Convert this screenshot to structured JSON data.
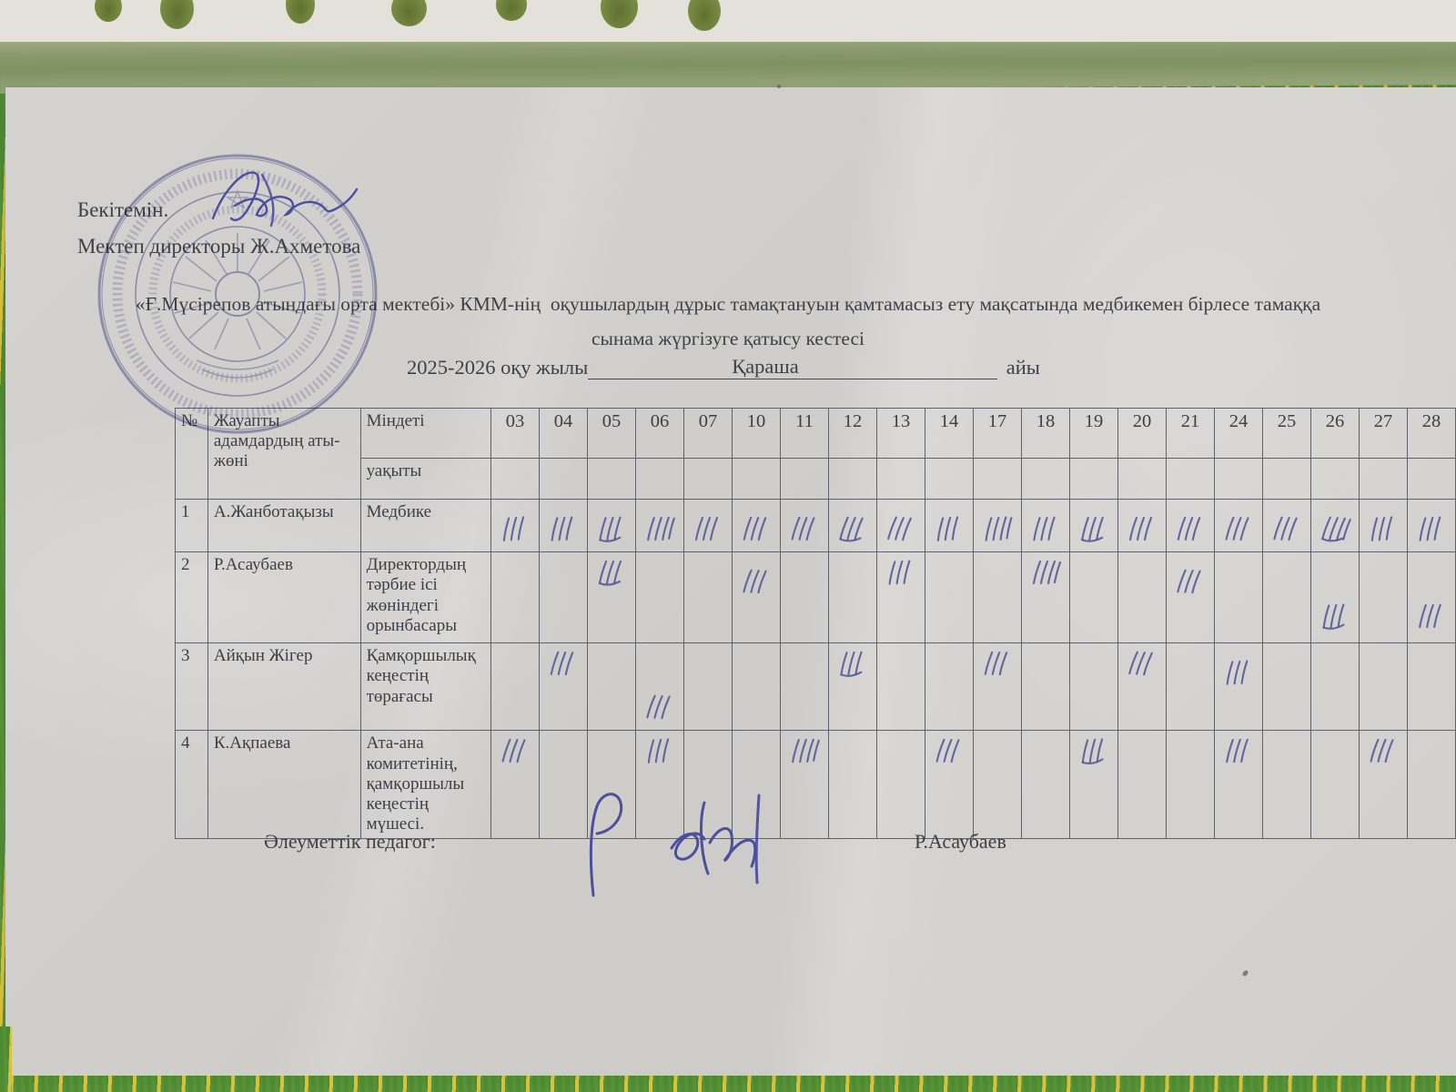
{
  "colors": {
    "paper": "#d7d5d2",
    "fabric_green": "#57923c",
    "fabric_yellow": "#dfc43c",
    "band_olive": "#8b9c6e",
    "ink_blue": "#4d5295",
    "stamp_blue": "#6a70b3",
    "text": "#3d4149"
  },
  "approval": {
    "approve_label": "Бекітемін.",
    "director_line": "Мектеп директоры Ж.Ахметова",
    "stamp_icon": "round-blue-school-stamp",
    "signature_icon": "handwritten-signature"
  },
  "title": {
    "line1": "«Ғ.Мүсірепов атындағы орта мектебі» КММ-нің  оқушылардың дұрыс тамақтануын қамтамасыз ету мақсатында медбикемен бірлесе тамаққа",
    "line2": "сынама жүргізуге қатысу кестесі",
    "year_label": "2025-2026 оқу жылы",
    "month_value": "Қараша",
    "month_suffix": "айы"
  },
  "table": {
    "header": {
      "num": "№",
      "name": "Жауапты адамдардың аты-жөні",
      "duty": "Міндеті",
      "time": "уақыты"
    },
    "dates": [
      "03",
      "04",
      "05",
      "06",
      "07",
      "10",
      "11",
      "12",
      "13",
      "14",
      "17",
      "18",
      "19",
      "20",
      "21",
      "24",
      "25",
      "26",
      "27",
      "28"
    ],
    "rows": [
      {
        "num": "1",
        "name": "А.Жанботақызы",
        "duty": "Медбике",
        "marks": [
          {
            "date": "03",
            "pos": "m"
          },
          {
            "date": "04",
            "pos": "m"
          },
          {
            "date": "05",
            "pos": "m"
          },
          {
            "date": "06",
            "pos": "m"
          },
          {
            "date": "07",
            "pos": "m"
          },
          {
            "date": "10",
            "pos": "m"
          },
          {
            "date": "11",
            "pos": "m"
          },
          {
            "date": "12",
            "pos": "m"
          },
          {
            "date": "13",
            "pos": "m"
          },
          {
            "date": "14",
            "pos": "m"
          },
          {
            "date": "17",
            "pos": "m"
          },
          {
            "date": "18",
            "pos": "m"
          },
          {
            "date": "19",
            "pos": "m"
          },
          {
            "date": "20",
            "pos": "m"
          },
          {
            "date": "21",
            "pos": "m"
          },
          {
            "date": "24",
            "pos": "m"
          },
          {
            "date": "25",
            "pos": "m"
          },
          {
            "date": "26",
            "pos": "m"
          },
          {
            "date": "27",
            "pos": "m"
          },
          {
            "date": "28",
            "pos": "m"
          }
        ]
      },
      {
        "num": "2",
        "name": "Р.Асаубаев",
        "duty": "Директордың тәрбие ісі жөніндегі орынбасары",
        "marks": [
          {
            "date": "05",
            "pos": "t"
          },
          {
            "date": "10",
            "pos": "m"
          },
          {
            "date": "13",
            "pos": "t"
          },
          {
            "date": "18",
            "pos": "t"
          },
          {
            "date": "21",
            "pos": "m"
          },
          {
            "date": "26",
            "pos": "b"
          },
          {
            "date": "28",
            "pos": "b"
          }
        ]
      },
      {
        "num": "3",
        "name": "Айқын Жігер",
        "duty": "Қамқоршылық кеңестің төрағасы",
        "marks": [
          {
            "date": "04",
            "pos": "t"
          },
          {
            "date": "06",
            "pos": "b"
          },
          {
            "date": "12",
            "pos": "t"
          },
          {
            "date": "17",
            "pos": "t"
          },
          {
            "date": "20",
            "pos": "t"
          },
          {
            "date": "24",
            "pos": "m"
          }
        ]
      },
      {
        "num": "4",
        "name": "К.Ақпаева",
        "duty": "Ата-ана комитетінің, қамқоршылы кеңестің мүшесі.",
        "marks": [
          {
            "date": "03",
            "pos": "t"
          },
          {
            "date": "06",
            "pos": "t"
          },
          {
            "date": "11",
            "pos": "t"
          },
          {
            "date": "14",
            "pos": "t"
          },
          {
            "date": "19",
            "pos": "t"
          },
          {
            "date": "24",
            "pos": "t"
          },
          {
            "date": "27",
            "pos": "t"
          }
        ]
      }
    ]
  },
  "footer": {
    "role_label": "Әлеуметтік педагог:",
    "signature_icon": "handwritten-signature",
    "name": "Р.Асаубаев"
  }
}
